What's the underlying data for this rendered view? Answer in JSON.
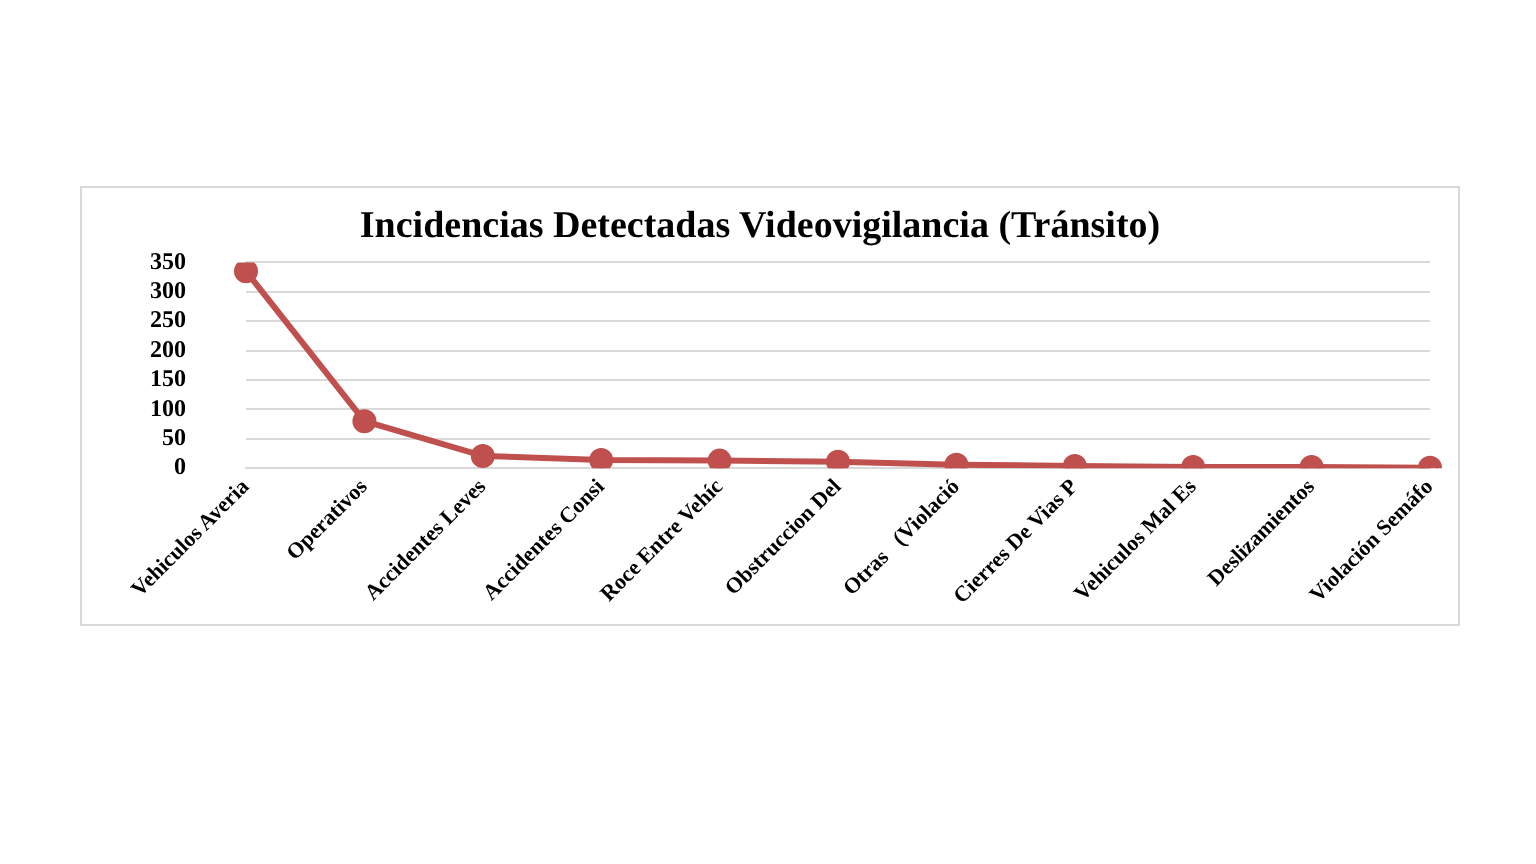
{
  "chart_data": {
    "type": "line",
    "title": "Incidencias Detectadas Videovigilancia (Tránsito)",
    "categories": [
      "Vehiculos Averia",
      "Operativos",
      "Accidentes Leves",
      "Accidentes Consi",
      "Roce Entre Vehíc",
      "Obstruccion Del",
      "Otras   (Violació",
      "Cierres De Vias P",
      "Vehiculos Mal Es",
      "Deslizamientos",
      "Violación Semáfo"
    ],
    "series": [
      {
        "color": "#c0504d",
        "values": [
          335,
          80,
          21,
          14,
          13,
          11,
          6,
          4,
          2,
          2,
          1
        ]
      }
    ],
    "ylim": [
      0,
      350
    ],
    "yticks": [
      0,
      50,
      100,
      150,
      200,
      250,
      300,
      350
    ],
    "grid": "y",
    "legend": false,
    "marker": "circle",
    "line_style": "solid"
  }
}
